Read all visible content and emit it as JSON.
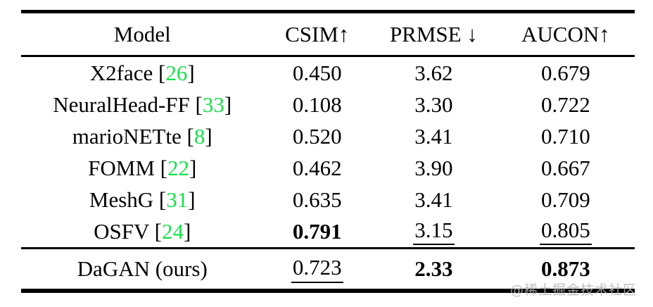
{
  "table": {
    "columns": [
      {
        "label": "Model"
      },
      {
        "label": "CSIM↑"
      },
      {
        "label": "PRMSE ↓"
      },
      {
        "label": "AUCON↑"
      }
    ],
    "rows": [
      {
        "model": "X2face",
        "cite": "26",
        "cells": [
          {
            "text": "0.450"
          },
          {
            "text": "3.62"
          },
          {
            "text": "0.679"
          }
        ]
      },
      {
        "model": "NeuralHead-FF",
        "cite": "33",
        "cells": [
          {
            "text": "0.108"
          },
          {
            "text": "3.30"
          },
          {
            "text": "0.722"
          }
        ]
      },
      {
        "model": "marioNETte",
        "cite": "8",
        "cells": [
          {
            "text": "0.520"
          },
          {
            "text": "3.41"
          },
          {
            "text": "0.710"
          }
        ]
      },
      {
        "model": "FOMM",
        "cite": "22",
        "cells": [
          {
            "text": "0.462"
          },
          {
            "text": "3.90"
          },
          {
            "text": "0.667"
          }
        ]
      },
      {
        "model": "MeshG",
        "cite": "31",
        "cells": [
          {
            "text": "0.635"
          },
          {
            "text": "3.41"
          },
          {
            "text": "0.709"
          }
        ]
      },
      {
        "model": "OSFV",
        "cite": "24",
        "cells": [
          {
            "text": "0.791",
            "bold": true
          },
          {
            "text": "3.15",
            "underline": true
          },
          {
            "text": "0.805",
            "underline": true
          }
        ]
      }
    ],
    "footer": {
      "model": "DaGAN (ours)",
      "cite": null,
      "cells": [
        {
          "text": "0.723",
          "underline": true
        },
        {
          "text": "2.33",
          "bold": true
        },
        {
          "text": "0.873",
          "bold": true
        }
      ]
    }
  },
  "watermark": "@稀土掘金技术社区",
  "colors": {
    "citation_green": "#16e14a",
    "watermark_gray": "#b5b5b5",
    "text_black": "#000000"
  }
}
